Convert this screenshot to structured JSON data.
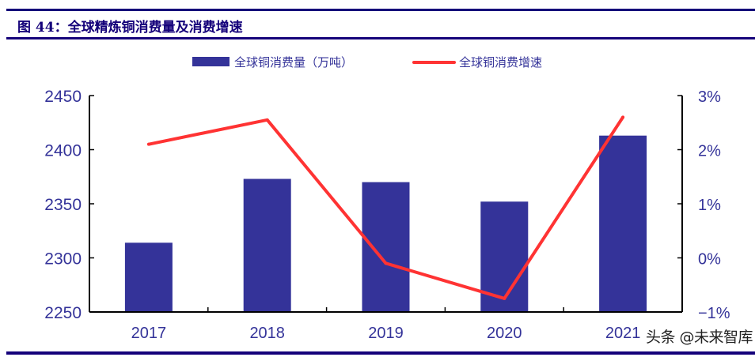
{
  "title": "图 44：全球精炼铜消费量及消费增速",
  "watermark": "头条 @未来智库",
  "chart_data": {
    "type": "bar+line",
    "categories": [
      "2017",
      "2018",
      "2019",
      "2020",
      "2021"
    ],
    "series": [
      {
        "name": "全球铜消费量（万吨）",
        "type": "bar",
        "axis": "left",
        "color": "#343399",
        "values": [
          2314,
          2373,
          2370,
          2352,
          2413
        ]
      },
      {
        "name": "全球铜消费增速",
        "type": "line",
        "axis": "right",
        "color": "#ff3333",
        "values": [
          2.1,
          2.55,
          -0.1,
          -0.75,
          2.6
        ]
      }
    ],
    "left_axis": {
      "range": [
        2250,
        2450
      ],
      "ticks": [
        "2250",
        "2300",
        "2350",
        "2400",
        "2450"
      ]
    },
    "right_axis": {
      "range": [
        -1,
        3
      ],
      "unit": "%",
      "ticks": [
        "−1%",
        "0%",
        "1%",
        "2%",
        "3%"
      ]
    },
    "legend_position": "top",
    "grid": false
  }
}
